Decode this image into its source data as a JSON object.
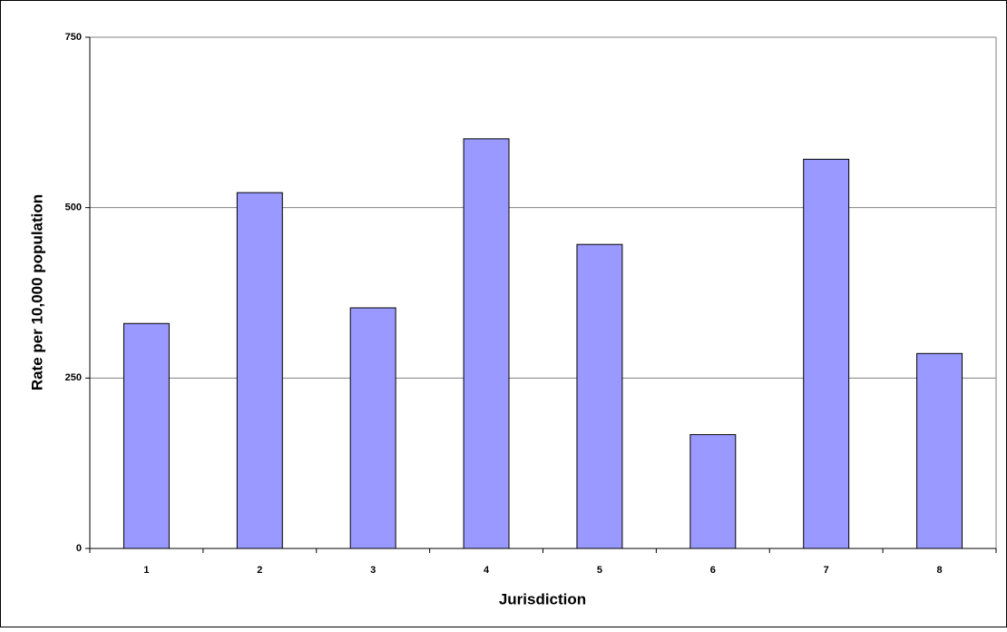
{
  "chart_data": {
    "type": "bar",
    "xlabel": "Jurisdiction",
    "ylabel": "Rate per 10,000 population",
    "categories": [
      "1",
      "2",
      "3",
      "4",
      "5",
      "6",
      "7",
      "8"
    ],
    "values": [
      330,
      522,
      353,
      601,
      446,
      167,
      571,
      286
    ],
    "color": "#9999ff",
    "ylim": [
      0,
      750
    ],
    "yticks": [
      0,
      250,
      500,
      750
    ],
    "grid": true
  }
}
